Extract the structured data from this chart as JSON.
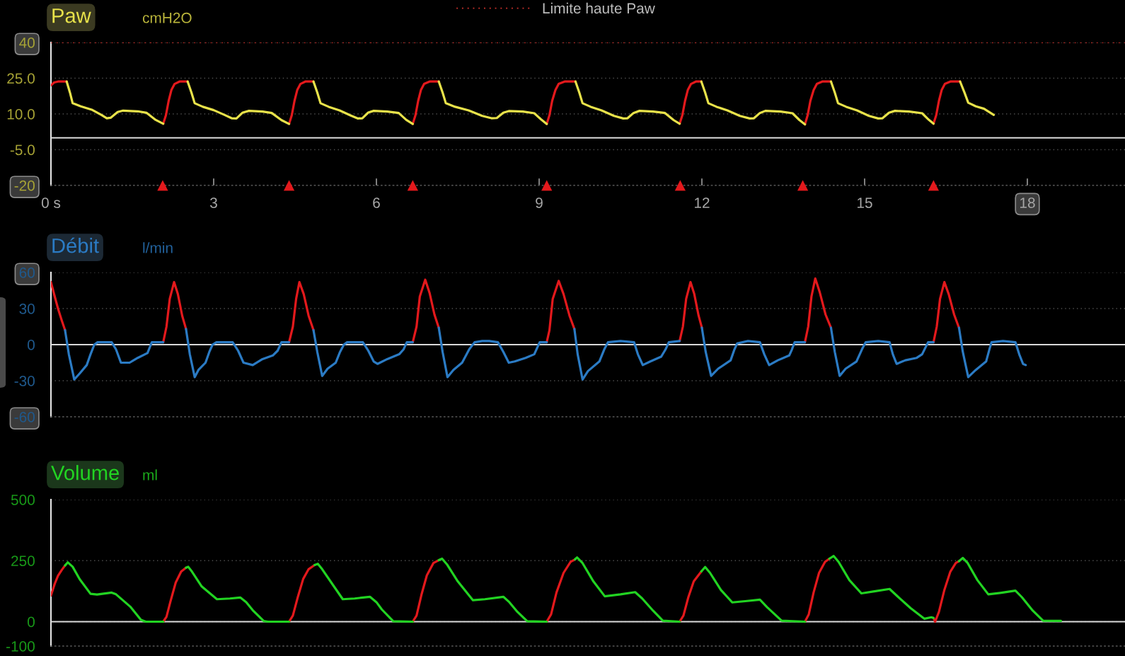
{
  "chart_data": [
    {
      "type": "line",
      "title": "Paw",
      "ylabel": "cmH2O",
      "xlim": [
        0,
        19.8
      ],
      "xticks": [
        {
          "value": 0,
          "label": "0 s"
        },
        3,
        6,
        9,
        12,
        15,
        18
      ],
      "ylim": [
        -20,
        40
      ],
      "yticks": [
        40,
        {
          "value": 25,
          "label": "25.0"
        },
        {
          "value": 10,
          "label": "10.0"
        },
        {
          "value": -5,
          "label": "-5.0"
        },
        -20
      ],
      "grid": "y",
      "legend": "top",
      "ref_lines": [
        {
          "axis": "y",
          "value": 40,
          "label": "Limite haute Paw",
          "color": "#c8302a",
          "line_style": "dotted"
        },
        {
          "axis": "y",
          "value": 0,
          "color": "#d9d9d9",
          "line_style": "solid"
        }
      ],
      "series": [
        {
          "color": "#e3191c",
          "x": [
            0,
            0.06,
            0.13,
            0.29,
            null,
            2.07,
            2.12,
            2.17,
            2.22,
            2.28,
            2.37,
            2.52,
            null,
            4.39,
            4.44,
            4.49,
            4.54,
            4.6,
            4.69,
            4.84,
            null,
            6.67,
            6.72,
            6.77,
            6.82,
            6.88,
            6.98,
            7.15,
            null,
            9.14,
            9.19,
            9.24,
            9.3,
            9.36,
            9.47,
            9.67,
            null,
            11.59,
            11.64,
            11.69,
            11.74,
            11.8,
            11.89,
            11.99,
            null,
            13.9,
            13.95,
            14.0,
            14.06,
            14.12,
            14.22,
            14.38,
            null,
            16.27,
            16.32,
            16.37,
            16.42,
            16.48,
            16.58,
            16.76
          ],
          "values": [
            22,
            23.2,
            23.6,
            23.6,
            null,
            5.9,
            9.5,
            15.5,
            20,
            22.6,
            23.6,
            23.6,
            null,
            5.8,
            9.5,
            15.5,
            20,
            22.6,
            23.6,
            23.6,
            null,
            5.8,
            9.5,
            15.5,
            20,
            22.6,
            23.6,
            23.6,
            null,
            5.8,
            9.5,
            15.5,
            20,
            22.6,
            23.6,
            23.6,
            null,
            5.9,
            9.5,
            15.5,
            20,
            22.6,
            23.6,
            23.6,
            null,
            5.6,
            9.5,
            15.5,
            20,
            22.6,
            23.6,
            23.6,
            null,
            5.9,
            9.5,
            15.5,
            20,
            22.6,
            23.6,
            23.6
          ]
        },
        {
          "color": "#e8e24a",
          "x": [
            0.29,
            0.35,
            0.4,
            0.55,
            0.75,
            0.93,
            1.03,
            1.1,
            1.23,
            1.33,
            1.6,
            1.76,
            1.93,
            2.07,
            null,
            2.52,
            2.59,
            2.65,
            2.8,
            3,
            3.2,
            3.33,
            3.42,
            3.53,
            3.65,
            3.9,
            4.07,
            4.25,
            4.39,
            null,
            4.84,
            4.91,
            4.97,
            5.12,
            5.32,
            5.52,
            5.66,
            5.74,
            5.85,
            5.95,
            6.2,
            6.41,
            6.55,
            6.67,
            null,
            7.15,
            7.22,
            7.28,
            7.45,
            7.7,
            7.95,
            8.12,
            8.22,
            8.34,
            8.44,
            8.7,
            8.91,
            9.04,
            9.14,
            null,
            9.67,
            9.74,
            9.8,
            9.95,
            10.15,
            10.38,
            10.55,
            10.63,
            10.74,
            10.85,
            11.1,
            11.32,
            11.48,
            11.59,
            null,
            11.99,
            12.06,
            12.12,
            12.27,
            12.47,
            12.7,
            12.88,
            12.96,
            13.07,
            13.17,
            13.45,
            13.67,
            13.8,
            13.9,
            null,
            14.38,
            14.45,
            14.51,
            14.66,
            14.86,
            15.08,
            15.25,
            15.33,
            15.45,
            15.56,
            15.82,
            16.06,
            16.18,
            16.27,
            null,
            16.76,
            16.84,
            16.91,
            17.05,
            17.2,
            17.38
          ],
          "values": [
            23.6,
            19,
            14.5,
            13.2,
            11.8,
            9.6,
            8.2,
            8.4,
            10.8,
            11.4,
            11.1,
            10.5,
            7.5,
            5.9,
            null,
            23.6,
            19,
            14.5,
            13,
            11.6,
            9.6,
            8.2,
            8.1,
            10.5,
            11.3,
            11,
            10.4,
            7.4,
            5.8,
            null,
            23.6,
            19,
            14.5,
            13,
            11.5,
            9.4,
            8.1,
            8.2,
            10.6,
            11.3,
            11,
            10.4,
            7.5,
            5.8,
            null,
            23.6,
            19,
            14.5,
            13,
            11.5,
            9.2,
            8.2,
            8.3,
            10.5,
            11.2,
            11,
            10.3,
            7.6,
            5.8,
            null,
            23.6,
            19,
            14.5,
            13,
            11.5,
            9.2,
            8.1,
            8.2,
            10.4,
            11.3,
            11,
            10.4,
            7.4,
            5.9,
            null,
            23.6,
            19,
            14.5,
            13,
            11.5,
            9.2,
            8.1,
            8.2,
            10.4,
            11.3,
            11,
            10.3,
            7.4,
            5.6,
            null,
            23.6,
            19,
            14.5,
            13,
            11.5,
            9.2,
            8.1,
            8.2,
            10.5,
            11.3,
            11,
            10.3,
            7.6,
            5.9,
            null,
            23.6,
            19,
            14.7,
            13.2,
            12.2,
            9.6
          ]
        },
        {
          "type": "scatter",
          "marker": "triangle",
          "color": "#e3191c",
          "x": [
            2.06,
            4.39,
            6.67,
            9.14,
            11.6,
            13.86,
            16.27
          ],
          "values": [
            -20,
            -20,
            -20,
            -20,
            -20,
            -20,
            -20
          ]
        }
      ]
    },
    {
      "type": "line",
      "title": "Débit",
      "ylabel": "l/min",
      "xlim": [
        0,
        19.8
      ],
      "ylim": [
        -60,
        60
      ],
      "yticks": [
        60,
        30,
        0,
        -30,
        -60
      ],
      "grid": "y",
      "tick_labels": "y",
      "ref_lines": [
        {
          "axis": "y",
          "value": 0,
          "color": "#d9d9d9",
          "line_style": "solid"
        }
      ],
      "series": [
        {
          "color": "#e3191c",
          "x": [
            0,
            0.07,
            0.13,
            0.2,
            0.26,
            null,
            2.07,
            2.13,
            2.19,
            2.27,
            2.34,
            2.42,
            2.49,
            null,
            4.39,
            4.46,
            4.52,
            4.58,
            4.66,
            4.75,
            4.84,
            null,
            6.67,
            6.74,
            6.8,
            6.9,
            6.98,
            7.07,
            7.15,
            null,
            9.14,
            9.19,
            9.25,
            9.36,
            9.45,
            9.56,
            9.65,
            null,
            11.59,
            11.65,
            11.71,
            11.79,
            11.86,
            11.94,
            12,
            null,
            13.9,
            13.96,
            14.02,
            14.09,
            14.17,
            14.28,
            14.38,
            null,
            16.27,
            16.33,
            16.39,
            16.47,
            16.55,
            16.65,
            16.74
          ],
          "values": [
            52,
            40,
            30,
            20,
            12,
            null,
            2,
            15,
            38,
            52,
            42,
            24,
            13,
            null,
            2,
            15,
            38,
            52,
            42,
            24,
            12,
            null,
            2,
            15,
            40,
            54,
            43,
            25,
            14,
            null,
            2,
            12,
            38,
            53,
            42,
            24,
            13,
            null,
            3,
            15,
            38,
            52,
            42,
            24,
            14,
            null,
            2,
            15,
            40,
            55,
            44,
            25,
            14,
            null,
            2,
            15,
            38,
            52,
            42,
            25,
            14
          ]
        },
        {
          "color": "#2b7bc4",
          "x": [
            0.26,
            0.33,
            0.43,
            0.53,
            0.66,
            0.73,
            0.8,
            0.86,
            1.12,
            1.2,
            1.29,
            1.45,
            1.6,
            1.78,
            1.86,
            2.07,
            null,
            2.49,
            2.56,
            2.65,
            2.72,
            2.85,
            2.92,
            2.98,
            3.05,
            3.35,
            3.45,
            3.55,
            3.72,
            3.9,
            4.09,
            4.18,
            4.25,
            4.39,
            null,
            4.84,
            4.91,
            5,
            5.1,
            5.25,
            5.33,
            5.4,
            5.46,
            5.75,
            5.85,
            5.95,
            6.02,
            6.2,
            6.42,
            6.5,
            6.56,
            6.67,
            null,
            7.15,
            7.22,
            7.31,
            7.42,
            7.58,
            7.71,
            7.81,
            7.95,
            8.08,
            8.24,
            8.34,
            8.44,
            8.55,
            8.75,
            8.91,
            9.01,
            9.14,
            null,
            9.65,
            9.71,
            9.8,
            9.9,
            10.11,
            10.2,
            10.27,
            10.5,
            10.75,
            10.82,
            10.91,
            11.05,
            11.25,
            11.33,
            11.39,
            11.59,
            null,
            12,
            12.07,
            12.17,
            12.3,
            12.53,
            12.6,
            12.65,
            12.85,
            13.07,
            13.15,
            13.24,
            13.4,
            13.61,
            13.66,
            13.71,
            13.9,
            null,
            14.38,
            14.45,
            14.54,
            14.65,
            14.85,
            14.95,
            15.02,
            15.25,
            15.46,
            15.52,
            15.59,
            15.75,
            15.96,
            16.06,
            16.17,
            16.27,
            null,
            16.74,
            16.81,
            16.91,
            17.05,
            17.24,
            17.3,
            17.34,
            17.55,
            17.78,
            17.85,
            17.92,
            17.97
          ],
          "values": [
            12,
            -8,
            -29,
            -24,
            -17,
            -8,
            0,
            2,
            2,
            -4,
            -15,
            -15,
            -11,
            -7,
            2,
            2,
            null,
            13,
            -8,
            -27,
            -21,
            -15,
            -6,
            0,
            2,
            2,
            -5,
            -15,
            -17,
            -12,
            -9,
            -5,
            2,
            2,
            null,
            12,
            -6,
            -26,
            -20,
            -15,
            -6,
            0,
            2,
            2,
            -5,
            -14,
            -16,
            -12,
            -8,
            -4,
            2,
            2,
            null,
            14,
            -6,
            -27,
            -21,
            -15,
            -4,
            2,
            3,
            3,
            2,
            -6,
            -15,
            -14,
            -11,
            -8,
            2,
            2,
            null,
            13,
            -8,
            -29,
            -22,
            -14,
            -4,
            2,
            3,
            2,
            -8,
            -17,
            -14,
            -10,
            -4,
            2,
            3,
            null,
            14,
            -6,
            -26,
            -20,
            -13,
            -4,
            1,
            3,
            2,
            -8,
            -17,
            -13,
            -9,
            -4,
            2,
            2,
            null,
            14,
            -6,
            -26,
            -20,
            -14,
            -4,
            2,
            3,
            2,
            -8,
            -16,
            -13,
            -11,
            -8,
            2,
            2,
            null,
            14,
            -6,
            -27,
            -21,
            -14,
            -4,
            2,
            3,
            2,
            -8,
            -16,
            -17
          ]
        }
      ]
    },
    {
      "type": "line",
      "title": "Volume",
      "ylabel": "ml",
      "xlim": [
        0,
        19.8
      ],
      "ylim": [
        -100,
        500
      ],
      "yticks": [
        500,
        250,
        0,
        -100
      ],
      "grid": "y",
      "tick_labels": "y",
      "ref_lines": [
        {
          "axis": "y",
          "value": 0,
          "color": "#d9d9d9",
          "line_style": "solid"
        }
      ],
      "series": [
        {
          "color": "#e3191c",
          "x": [
            0,
            0.07,
            0.13,
            0.2,
            0.26,
            null,
            2.07,
            2.13,
            2.2,
            2.3,
            2.4,
            2.49,
            null,
            4.39,
            4.46,
            4.55,
            4.65,
            4.75,
            4.86,
            null,
            6.67,
            6.74,
            6.83,
            6.93,
            7.05,
            7.15,
            null,
            9.14,
            9.22,
            9.32,
            9.45,
            9.58,
            9.66,
            null,
            11.59,
            11.66,
            11.75,
            11.85,
            11.99,
            null,
            13.9,
            13.97,
            14.06,
            14.16,
            14.27,
            14.35,
            null,
            16.27,
            16.3,
            16.37,
            16.47,
            16.58,
            16.68,
            16.74
          ],
          "values": [
            107,
            155,
            188,
            212,
            230,
            null,
            0,
            20,
            80,
            160,
            205,
            221,
            null,
            0,
            25,
            100,
            175,
            215,
            232,
            null,
            0,
            25,
            110,
            190,
            240,
            252,
            null,
            0,
            30,
            120,
            200,
            245,
            255,
            null,
            0,
            25,
            100,
            165,
            206,
            null,
            0,
            30,
            120,
            200,
            245,
            258,
            null,
            15,
            0,
            40,
            130,
            205,
            240,
            248
          ]
        },
        {
          "color": "#22d422",
          "x": [
            0.26,
            0.31,
            0.4,
            0.53,
            0.73,
            0.85,
            1.12,
            1.2,
            1.46,
            1.66,
            1.75,
            2.07,
            null,
            2.49,
            2.53,
            2.6,
            2.78,
            3.06,
            3.3,
            3.49,
            3.6,
            3.72,
            3.92,
            4,
            4.39,
            null,
            4.86,
            4.92,
            5,
            5.2,
            5.38,
            5.6,
            5.88,
            6,
            6.1,
            6.31,
            6.67,
            null,
            7.15,
            7.21,
            7.3,
            7.5,
            7.78,
            8,
            8.34,
            8.45,
            8.6,
            8.78,
            9.14,
            null,
            9.66,
            9.7,
            9.8,
            10,
            10.21,
            10.5,
            10.77,
            10.9,
            11.1,
            11.28,
            11.59,
            null,
            11.99,
            12.06,
            12.15,
            12.35,
            12.56,
            12.8,
            13.07,
            13.2,
            13.47,
            13.9,
            null,
            14.35,
            14.43,
            14.52,
            14.72,
            14.94,
            15.2,
            15.46,
            15.6,
            15.85,
            16.1,
            16.23,
            16.27,
            null,
            16.74,
            16.81,
            16.9,
            17.08,
            17.28,
            17.5,
            17.78,
            17.9,
            18.1,
            18.29,
            18.62
          ],
          "values": [
            230,
            243,
            225,
            174,
            114,
            111,
            119,
            112,
            62,
            7,
            0,
            0,
            null,
            221,
            225,
            205,
            144,
            92,
            95,
            99,
            80,
            47,
            3,
            0,
            0,
            null,
            232,
            237,
            215,
            150,
            92,
            95,
            102,
            80,
            50,
            2,
            0,
            null,
            252,
            258,
            235,
            165,
            88,
            92,
            102,
            80,
            40,
            2,
            0,
            null,
            255,
            263,
            240,
            165,
            104,
            112,
            121,
            95,
            45,
            4,
            0,
            null,
            206,
            224,
            200,
            130,
            79,
            84,
            90,
            60,
            4,
            0,
            null,
            258,
            269,
            245,
            170,
            116,
            125,
            134,
            105,
            55,
            12,
            18,
            15,
            null,
            248,
            261,
            240,
            170,
            112,
            118,
            127,
            100,
            45,
            4,
            3
          ]
        }
      ]
    }
  ]
}
